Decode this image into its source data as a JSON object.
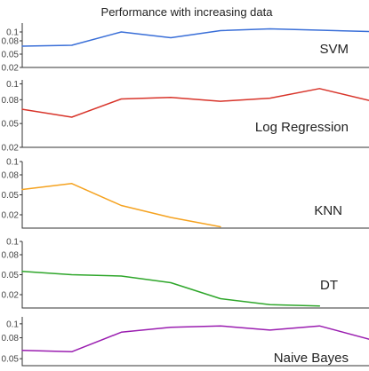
{
  "chart_data": {
    "type": "line",
    "title": "Performance with increasing data",
    "x": [
      1,
      2,
      3,
      4,
      5,
      6,
      7,
      8
    ],
    "panels": [
      {
        "label": "SVM",
        "color": "#3a6fd8",
        "ylim": [
          0.02,
          0.12
        ],
        "yticks": [
          {
            "value": 0.1,
            "label": "0.1"
          },
          {
            "value": 0.08,
            "label": "0.08"
          },
          {
            "value": 0.05,
            "label": "0.05"
          },
          {
            "value": 0.02,
            "label": "0.02"
          }
        ],
        "values": [
          0.068,
          0.07,
          0.1,
          0.087,
          0.103,
          0.107,
          0.104,
          0.101
        ]
      },
      {
        "label": "Log Regression",
        "color": "#d8342a",
        "ylim": [
          0.02,
          0.105
        ],
        "yticks": [
          {
            "value": 0.1,
            "label": "0.1"
          },
          {
            "value": 0.08,
            "label": "0.08"
          },
          {
            "value": 0.05,
            "label": "0.05"
          },
          {
            "value": 0.02,
            "label": "0.02"
          }
        ],
        "values": [
          0.068,
          0.058,
          0.081,
          0.083,
          0.078,
          0.082,
          0.094,
          0.079
        ]
      },
      {
        "label": "KNN",
        "color": "#f5a21f",
        "ylim": [
          0.0,
          0.1
        ],
        "yticks": [
          {
            "value": 0.1,
            "label": "0.1"
          },
          {
            "value": 0.08,
            "label": "0.08"
          },
          {
            "value": 0.05,
            "label": "0.05"
          },
          {
            "value": 0.02,
            "label": "0.02"
          }
        ],
        "values": [
          0.058,
          0.067,
          0.034,
          0.016,
          0.002
        ]
      },
      {
        "label": "DT",
        "color": "#2ea62a",
        "ylim": [
          0.0,
          0.1
        ],
        "yticks": [
          {
            "value": 0.1,
            "label": "0.1"
          },
          {
            "value": 0.08,
            "label": "0.08"
          },
          {
            "value": 0.05,
            "label": "0.05"
          },
          {
            "value": 0.02,
            "label": "0.02"
          }
        ],
        "values": [
          0.055,
          0.05,
          0.048,
          0.038,
          0.014,
          0.005,
          0.003
        ]
      },
      {
        "label": "Naive Bayes",
        "color": "#9a1db0",
        "ylim": [
          0.04,
          0.11
        ],
        "yticks": [
          {
            "value": 0.1,
            "label": "0.1"
          },
          {
            "value": 0.08,
            "label": "0.08"
          },
          {
            "value": 0.05,
            "label": "0.05"
          }
        ],
        "values": [
          0.062,
          0.06,
          0.088,
          0.095,
          0.097,
          0.091,
          0.097,
          0.078
        ]
      }
    ]
  }
}
